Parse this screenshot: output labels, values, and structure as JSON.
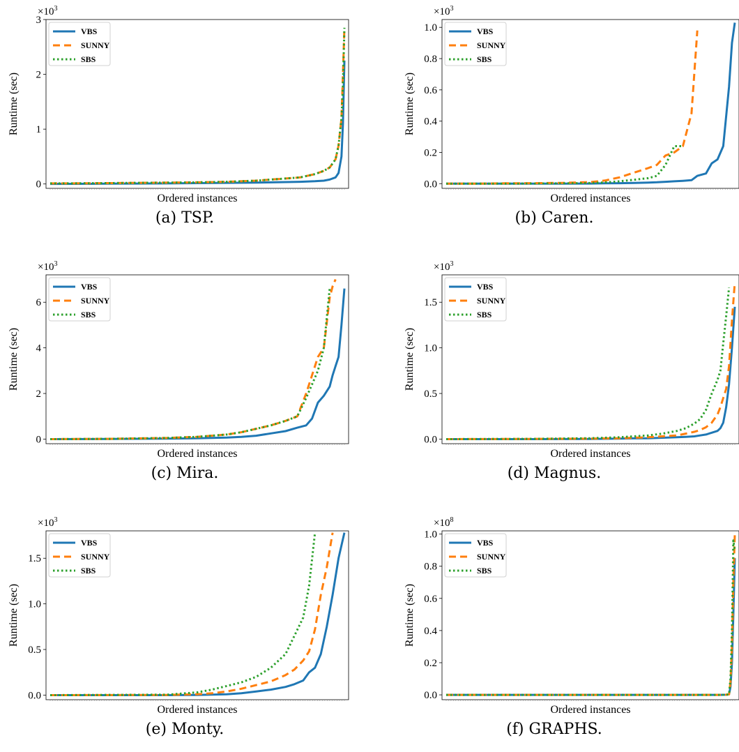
{
  "colors": {
    "VBS": "#1f77b4",
    "SUNNY": "#ff7f0e",
    "SBS": "#2ca02c"
  },
  "legend": {
    "placement": "top-left",
    "entries": [
      "VBS",
      "SUNNY",
      "SBS"
    ]
  },
  "chart_data": [
    {
      "id": "tsp",
      "type": "line",
      "caption": "(a) TSP.",
      "xlabel": "Ordered instances",
      "ylabel": "Runtime (sec)",
      "scale_label": "×10",
      "scale_exp": "3",
      "xlim": [
        0,
        1
      ],
      "ylim": [
        -0.08,
        3.0
      ],
      "yticks": [
        0,
        1,
        2,
        3
      ],
      "ytick_labels": [
        "0",
        "1",
        "2",
        "3"
      ],
      "dense_xticks": true,
      "grid": false,
      "x": [
        0,
        0.1,
        0.2,
        0.3,
        0.4,
        0.5,
        0.6,
        0.7,
        0.75,
        0.8,
        0.85,
        0.9,
        0.93,
        0.95,
        0.97,
        0.98,
        0.99,
        0.995,
        1.0
      ],
      "series": [
        {
          "name": "VBS",
          "values": [
            0.002,
            0.003,
            0.005,
            0.008,
            0.01,
            0.015,
            0.02,
            0.025,
            0.03,
            0.035,
            0.04,
            0.05,
            0.06,
            0.08,
            0.12,
            0.2,
            0.5,
            1.1,
            2.25
          ]
        },
        {
          "name": "SUNNY",
          "values": [
            0.01,
            0.012,
            0.015,
            0.02,
            0.025,
            0.03,
            0.04,
            0.06,
            0.08,
            0.1,
            0.12,
            0.18,
            0.24,
            0.3,
            0.45,
            0.7,
            1.2,
            2.0,
            2.85
          ]
        },
        {
          "name": "SBS",
          "values": [
            0.01,
            0.012,
            0.015,
            0.02,
            0.025,
            0.03,
            0.04,
            0.06,
            0.08,
            0.1,
            0.12,
            0.18,
            0.24,
            0.3,
            0.45,
            0.7,
            1.2,
            1.8,
            2.85
          ]
        }
      ]
    },
    {
      "id": "caren",
      "type": "line",
      "caption": "(b) Caren.",
      "xlabel": "Ordered instances",
      "ylabel": "Runtime (sec)",
      "scale_label": "×10",
      "scale_exp": "3",
      "xlim": [
        0,
        1
      ],
      "ylim": [
        -0.03,
        1.05
      ],
      "yticks": [
        0,
        0.2,
        0.4,
        0.6,
        0.8,
        1.0
      ],
      "ytick_labels": [
        "0.0",
        "0.2",
        "0.4",
        "0.6",
        "0.8",
        "1.0"
      ],
      "dense_xticks": true,
      "grid": false,
      "x": [
        0,
        0.1,
        0.2,
        0.3,
        0.4,
        0.5,
        0.55,
        0.6,
        0.65,
        0.7,
        0.73,
        0.76,
        0.79,
        0.82,
        0.85,
        0.87,
        0.9,
        0.92,
        0.94,
        0.96,
        0.98,
        0.99,
        1.0
      ],
      "series": [
        {
          "name": "VBS",
          "values": [
            0.0,
            0.0,
            0.0,
            0.0,
            0.0,
            0.001,
            0.002,
            0.003,
            0.005,
            0.007,
            0.009,
            0.012,
            0.015,
            0.018,
            0.022,
            0.05,
            0.065,
            0.13,
            0.155,
            0.24,
            0.62,
            0.9,
            1.03
          ]
        },
        {
          "name": "SUNNY",
          "values": [
            0.0,
            0.0,
            0.002,
            0.003,
            0.005,
            0.01,
            0.02,
            0.04,
            0.07,
            0.1,
            0.12,
            0.18,
            0.2,
            0.24,
            0.45,
            0.98,
            null,
            null,
            null,
            null,
            null,
            null,
            null
          ]
        },
        {
          "name": "SBS",
          "values": [
            0.0,
            0.0,
            0.0,
            0.001,
            0.002,
            0.004,
            0.008,
            0.015,
            0.025,
            0.035,
            0.05,
            0.12,
            0.24,
            0.24,
            null,
            null,
            null,
            null,
            null,
            null,
            null,
            null,
            null
          ]
        }
      ]
    },
    {
      "id": "mira",
      "type": "line",
      "caption": "(c) Mira.",
      "xlabel": "Ordered instances",
      "ylabel": "Runtime (sec)",
      "scale_label": "×10",
      "scale_exp": "3",
      "xlim": [
        0,
        1
      ],
      "ylim": [
        -0.2,
        7.2
      ],
      "yticks": [
        0,
        2,
        4,
        6
      ],
      "ytick_labels": [
        "0",
        "2",
        "4",
        "6"
      ],
      "dense_xticks": true,
      "grid": false,
      "x": [
        0,
        0.2,
        0.4,
        0.5,
        0.6,
        0.65,
        0.7,
        0.75,
        0.8,
        0.84,
        0.87,
        0.89,
        0.91,
        0.93,
        0.95,
        0.96,
        0.97,
        0.98,
        0.99,
        1.0
      ],
      "series": [
        {
          "name": "VBS",
          "values": [
            0.0,
            0.005,
            0.02,
            0.04,
            0.07,
            0.1,
            0.15,
            0.25,
            0.35,
            0.5,
            0.6,
            0.9,
            1.6,
            1.9,
            2.3,
            2.8,
            3.2,
            3.6,
            5.0,
            6.6
          ]
        },
        {
          "name": "SUNNY",
          "values": [
            0.0,
            0.01,
            0.05,
            0.1,
            0.2,
            0.3,
            0.45,
            0.6,
            0.8,
            1.0,
            2.0,
            2.8,
            3.6,
            4.0,
            6.2,
            6.7,
            7.0,
            null,
            null,
            null
          ]
        },
        {
          "name": "SBS",
          "values": [
            0.0,
            0.01,
            0.05,
            0.1,
            0.2,
            0.3,
            0.45,
            0.6,
            0.8,
            1.0,
            1.8,
            2.4,
            3.0,
            4.0,
            6.6,
            null,
            null,
            null,
            null,
            null
          ]
        }
      ]
    },
    {
      "id": "magnus",
      "type": "line",
      "caption": "(d) Magnus.",
      "xlabel": "Ordered instances",
      "ylabel": "Runtime (sec)",
      "scale_label": "×10",
      "scale_exp": "3",
      "xlim": [
        0,
        1
      ],
      "ylim": [
        -0.05,
        1.8
      ],
      "yticks": [
        0,
        0.5,
        1.0,
        1.5
      ],
      "ytick_labels": [
        "0.0",
        "0.5",
        "1.0",
        "1.5"
      ],
      "dense_xticks": true,
      "grid": false,
      "x": [
        0,
        0.3,
        0.5,
        0.6,
        0.65,
        0.7,
        0.75,
        0.8,
        0.83,
        0.86,
        0.88,
        0.9,
        0.92,
        0.94,
        0.95,
        0.96,
        0.97,
        0.98,
        0.99,
        1.0
      ],
      "series": [
        {
          "name": "VBS",
          "values": [
            0.0,
            0.0,
            0.002,
            0.005,
            0.008,
            0.01,
            0.015,
            0.02,
            0.025,
            0.03,
            0.04,
            0.05,
            0.07,
            0.09,
            0.12,
            0.18,
            0.35,
            0.6,
            1.0,
            1.45
          ]
        },
        {
          "name": "SUNNY",
          "values": [
            0.0,
            0.002,
            0.005,
            0.01,
            0.015,
            0.02,
            0.03,
            0.04,
            0.06,
            0.08,
            0.1,
            0.13,
            0.18,
            0.27,
            0.35,
            0.45,
            0.55,
            0.8,
            1.3,
            1.72
          ]
        },
        {
          "name": "SBS",
          "values": [
            0.0,
            0.003,
            0.01,
            0.02,
            0.03,
            0.04,
            0.06,
            0.09,
            0.12,
            0.17,
            0.22,
            0.32,
            0.5,
            0.65,
            0.75,
            1.05,
            1.35,
            1.66,
            null,
            null
          ]
        }
      ]
    },
    {
      "id": "monty",
      "type": "line",
      "caption": "(e) Monty.",
      "xlabel": "Ordered instances",
      "ylabel": "Runtime (sec)",
      "scale_label": "×10",
      "scale_exp": "3",
      "xlim": [
        0,
        1
      ],
      "ylim": [
        -0.05,
        1.8
      ],
      "yticks": [
        0,
        0.5,
        1.0,
        1.5
      ],
      "ytick_labels": [
        "0.0",
        "0.5",
        "1.0",
        "1.5"
      ],
      "dense_xticks": true,
      "grid": false,
      "x": [
        0,
        0.4,
        0.5,
        0.55,
        0.6,
        0.65,
        0.7,
        0.75,
        0.8,
        0.83,
        0.86,
        0.88,
        0.9,
        0.92,
        0.94,
        0.96,
        0.98,
        1.0
      ],
      "series": [
        {
          "name": "VBS",
          "values": [
            0.0,
            0.0,
            0.002,
            0.005,
            0.01,
            0.02,
            0.04,
            0.06,
            0.09,
            0.12,
            0.16,
            0.25,
            0.3,
            0.45,
            0.75,
            1.1,
            1.5,
            1.78
          ]
        },
        {
          "name": "SUNNY",
          "values": [
            0.0,
            0.002,
            0.01,
            0.02,
            0.04,
            0.07,
            0.11,
            0.15,
            0.22,
            0.28,
            0.38,
            0.48,
            0.72,
            1.1,
            1.4,
            1.78,
            null,
            null
          ]
        },
        {
          "name": "SBS",
          "values": [
            0.0,
            0.005,
            0.03,
            0.06,
            0.1,
            0.14,
            0.2,
            0.3,
            0.45,
            0.65,
            0.85,
            1.2,
            1.78,
            null,
            null,
            null,
            null,
            null
          ]
        }
      ]
    },
    {
      "id": "graphs",
      "type": "line",
      "caption": "(f) GRAPHS.",
      "xlabel": "Ordered instances",
      "ylabel": "Runtime (sec)",
      "scale_label": "×10",
      "scale_exp": "8",
      "xlim": [
        0,
        1
      ],
      "ylim": [
        -0.03,
        1.02
      ],
      "yticks": [
        0,
        0.2,
        0.4,
        0.6,
        0.8,
        1.0
      ],
      "ytick_labels": [
        "0.0",
        "0.2",
        "0.4",
        "0.6",
        "0.8",
        "1.0"
      ],
      "dense_xticks": true,
      "grid": false,
      "x": [
        0,
        0.5,
        0.9,
        0.95,
        0.97,
        0.98,
        0.985,
        0.99,
        0.995,
        1.0
      ],
      "series": [
        {
          "name": "VBS",
          "values": [
            0.0,
            0.0,
            0.0,
            0.0,
            0.001,
            0.003,
            0.05,
            0.2,
            0.5,
            0.85
          ]
        },
        {
          "name": "SUNNY",
          "values": [
            0.0,
            0.0,
            0.0,
            0.0,
            0.001,
            0.003,
            0.08,
            0.3,
            0.7,
            1.0
          ]
        },
        {
          "name": "SBS",
          "values": [
            0.0,
            0.0,
            0.0,
            0.0,
            0.001,
            0.003,
            0.1,
            0.4,
            0.96,
            0.9
          ]
        }
      ]
    }
  ]
}
